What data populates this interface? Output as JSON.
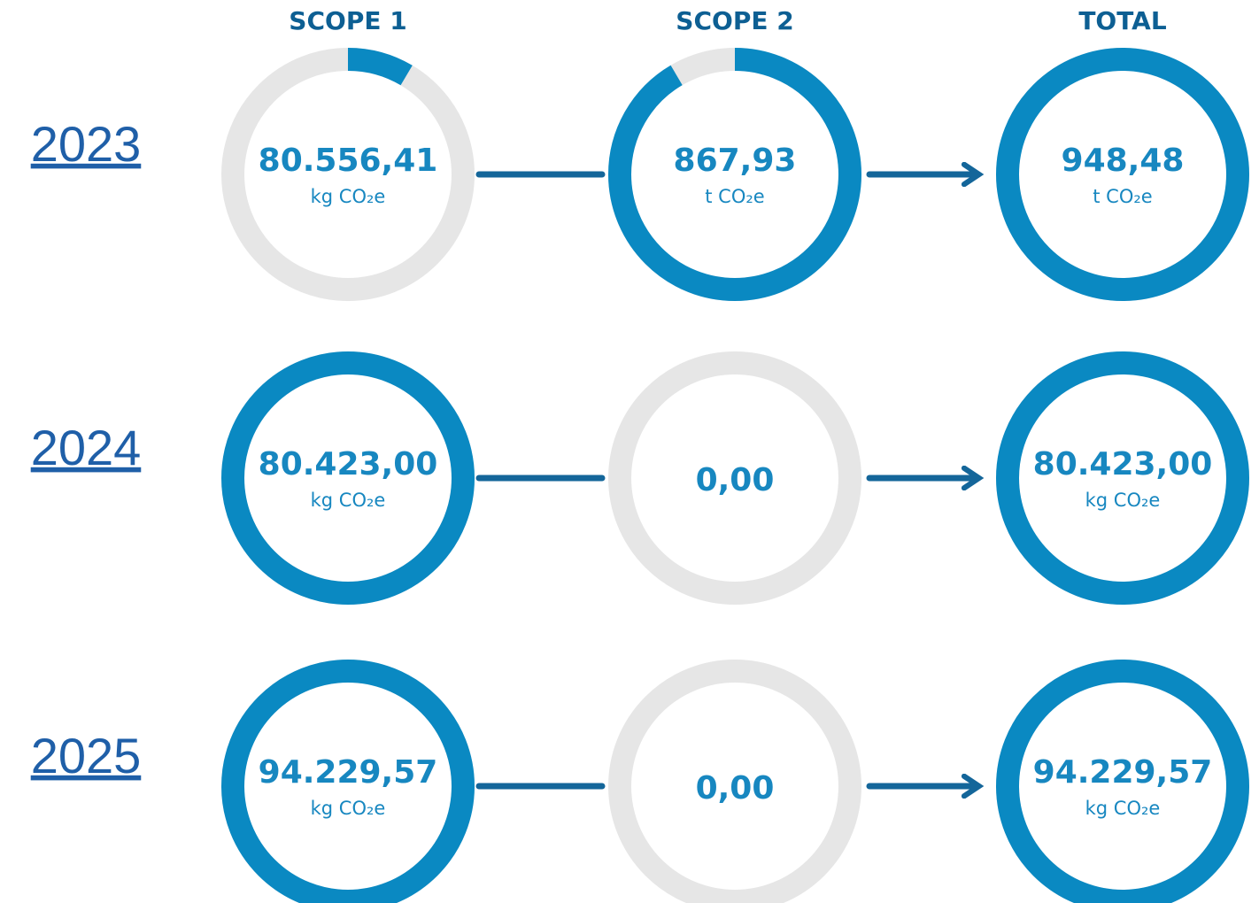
{
  "columns": [
    "SCOPE 1",
    "SCOPE 2",
    "TOTAL"
  ],
  "rows": [
    {
      "year": "2023",
      "cells": [
        {
          "value": "80.556,41",
          "unit": "kg CO₂e",
          "share": 8.5
        },
        {
          "value": "867,93",
          "unit": "t CO₂e",
          "share": 91.5
        },
        {
          "value": "948,48",
          "unit": "t CO₂e",
          "share": 100
        }
      ]
    },
    {
      "year": "2024",
      "cells": [
        {
          "value": "80.423,00",
          "unit": "kg CO₂e",
          "share": 100
        },
        {
          "value": "0,00",
          "share": 0
        },
        {
          "value": "80.423,00",
          "unit": "kg CO₂e",
          "share": 100
        }
      ]
    },
    {
      "year": "2025",
      "cells": [
        {
          "value": "94.229,57",
          "unit": "kg CO₂e",
          "share": 100
        },
        {
          "value": "0,00",
          "share": 0
        },
        {
          "value": "94.229,57",
          "unit": "kg CO₂e",
          "share": 100
        }
      ]
    }
  ]
}
